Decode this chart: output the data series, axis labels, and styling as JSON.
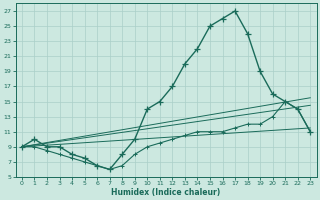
{
  "xlabel": "Humidex (Indice chaleur)",
  "xlim": [
    -0.5,
    23.5
  ],
  "ylim": [
    5,
    28
  ],
  "xticks": [
    0,
    1,
    2,
    3,
    4,
    5,
    6,
    7,
    8,
    9,
    10,
    11,
    12,
    13,
    14,
    15,
    16,
    17,
    18,
    19,
    20,
    21,
    22,
    23
  ],
  "yticks": [
    5,
    7,
    9,
    11,
    13,
    15,
    17,
    19,
    21,
    23,
    25,
    27
  ],
  "bg_color": "#cce8e0",
  "line_color": "#1a6b5a",
  "grid_color": "#aacfc8",
  "curve1_x": [
    0,
    1,
    2,
    3,
    4,
    5,
    6,
    7,
    8,
    9,
    10,
    11,
    12,
    13,
    14,
    15,
    16,
    17,
    18,
    19,
    20,
    21,
    22,
    23
  ],
  "curve1_y": [
    9,
    10,
    9,
    9,
    8,
    7.5,
    6.5,
    6,
    8,
    10,
    14,
    15,
    17,
    20,
    22,
    25,
    26,
    27,
    24,
    19,
    16,
    15,
    14,
    11
  ],
  "curve2_x": [
    0,
    1,
    2,
    3,
    4,
    5,
    6,
    7,
    8,
    9,
    10,
    11,
    12,
    13,
    14,
    15,
    16,
    17,
    18,
    19,
    20,
    21,
    22,
    23
  ],
  "curve2_y": [
    9,
    9,
    8.5,
    8,
    7.5,
    7,
    6.5,
    6,
    6.5,
    8,
    9,
    9.5,
    10,
    10.5,
    11,
    11,
    11,
    11.5,
    12,
    12,
    13,
    15,
    14,
    11
  ],
  "line1_x": [
    0,
    23
  ],
  "line1_y": [
    9,
    15.5
  ],
  "line2_x": [
    0,
    23
  ],
  "line2_y": [
    9,
    14.5
  ],
  "line3_x": [
    0,
    23
  ],
  "line3_y": [
    9,
    11.5
  ]
}
